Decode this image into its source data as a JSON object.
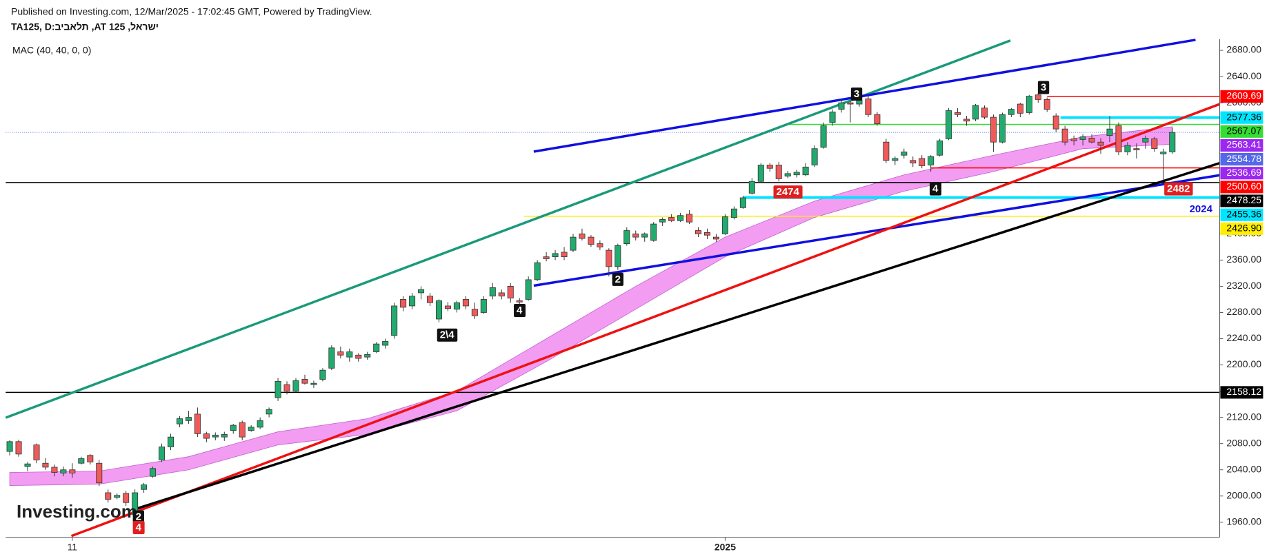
{
  "header": {
    "published": "Published on Investing.com, 12/Mar/2025 - 17:02:45 GMT, Powered by TradingView.",
    "symbol": "TA125, D:ביבאלת ,AT 125 ,לארשי"
  },
  "chart_data": {
    "type": "candlestick",
    "categories": [
      null,
      null,
      null,
      null,
      null,
      null,
      null,
      "11",
      null,
      null,
      null,
      null,
      null,
      null,
      null,
      null,
      null,
      null,
      null,
      null,
      null,
      null,
      null,
      null,
      null,
      null,
      null,
      null,
      null,
      null,
      null,
      null,
      null,
      null,
      null,
      null,
      null,
      null,
      null,
      null,
      null,
      null,
      null,
      null,
      null,
      null,
      null,
      null,
      null,
      null,
      null,
      null,
      null,
      null,
      null,
      null,
      null,
      null,
      null,
      null,
      null,
      null,
      null,
      null,
      null,
      null,
      null,
      null,
      null,
      null,
      null,
      null,
      null,
      null,
      null,
      null,
      null,
      null,
      null,
      null,
      "2025",
      null,
      null,
      null,
      null,
      null,
      null,
      null,
      null,
      null,
      null,
      null,
      null,
      null,
      null,
      null,
      null,
      null,
      null,
      null,
      null,
      null,
      null,
      null,
      null,
      null,
      null,
      null,
      null,
      null,
      null,
      null,
      null,
      null,
      null,
      null,
      null,
      null,
      null,
      null,
      null,
      null,
      null,
      null,
      null,
      null,
      null,
      null,
      null,
      null,
      null
    ],
    "open": [
      2068,
      2083,
      2045,
      2078,
      2050,
      2044,
      2035,
      2040,
      2050,
      2062,
      2050,
      2005,
      1998,
      2004,
      1972,
      2010,
      2030,
      2055,
      2075,
      2110,
      2115,
      2125,
      2095,
      2090,
      2090,
      2100,
      2112,
      2100,
      2105,
      2125,
      2150,
      2170,
      2160,
      2178,
      2170,
      2178,
      2195,
      2220,
      2212,
      2215,
      2212,
      2220,
      2230,
      2245,
      2300,
      2290,
      2310,
      2305,
      2270,
      2290,
      2285,
      2300,
      2285,
      2280,
      2305,
      2310,
      2320,
      2298,
      2300,
      2330,
      2365,
      2365,
      2372,
      2375,
      2400,
      2395,
      2385,
      2375,
      2350,
      2385,
      2400,
      2395,
      2390,
      2418,
      2425,
      2420,
      2430,
      2405,
      2402,
      2395,
      2400,
      2425,
      2440,
      2462,
      2480,
      2505,
      2505,
      2488,
      2490,
      2490,
      2505,
      2532,
      2570,
      2590,
      2600,
      2598,
      2606,
      2582,
      2540,
      2512,
      2520,
      2512,
      2515,
      2505,
      2520,
      2545,
      2585,
      2575,
      2575,
      2592,
      2578,
      2540,
      2582,
      2598,
      2585,
      2612,
      2605,
      2580,
      2560,
      2545,
      2544,
      2546,
      2540,
      2550,
      2565,
      2525,
      2530,
      2540,
      2545,
      2522,
      2525
    ],
    "high": [
      2085,
      2086,
      2052,
      2080,
      2058,
      2048,
      2045,
      2050,
      2060,
      2064,
      2055,
      2010,
      2004,
      2008,
      2010,
      2020,
      2045,
      2080,
      2095,
      2122,
      2130,
      2135,
      2098,
      2097,
      2098,
      2110,
      2115,
      2108,
      2120,
      2135,
      2180,
      2175,
      2180,
      2185,
      2176,
      2195,
      2230,
      2228,
      2225,
      2218,
      2220,
      2235,
      2240,
      2295,
      2305,
      2310,
      2320,
      2310,
      2300,
      2296,
      2298,
      2305,
      2295,
      2305,
      2325,
      2315,
      2325,
      2302,
      2335,
      2360,
      2372,
      2375,
      2380,
      2400,
      2408,
      2398,
      2390,
      2378,
      2385,
      2410,
      2405,
      2402,
      2418,
      2425,
      2430,
      2432,
      2436,
      2410,
      2408,
      2400,
      2430,
      2442,
      2458,
      2485,
      2508,
      2508,
      2510,
      2496,
      2498,
      2508,
      2535,
      2570,
      2590,
      2605,
      2603,
      2612,
      2610,
      2586,
      2545,
      2518,
      2530,
      2518,
      2520,
      2520,
      2545,
      2592,
      2592,
      2580,
      2598,
      2596,
      2582,
      2585,
      2592,
      2600,
      2612,
      2615,
      2608,
      2584,
      2565,
      2550,
      2552,
      2552,
      2546,
      2580,
      2570,
      2540,
      2538,
      2550,
      2548,
      2530,
      2562
    ],
    "low": [
      2062,
      2060,
      2038,
      2050,
      2040,
      2030,
      2030,
      2028,
      2048,
      2048,
      2015,
      1990,
      1995,
      1985,
      1960,
      2005,
      2028,
      2052,
      2070,
      2105,
      2110,
      2090,
      2082,
      2085,
      2084,
      2095,
      2085,
      2098,
      2102,
      2120,
      2145,
      2155,
      2158,
      2170,
      2165,
      2175,
      2192,
      2210,
      2205,
      2205,
      2208,
      2218,
      2225,
      2240,
      2282,
      2285,
      2300,
      2290,
      2265,
      2282,
      2280,
      2285,
      2270,
      2278,
      2300,
      2300,
      2295,
      2290,
      2298,
      2328,
      2358,
      2360,
      2360,
      2372,
      2390,
      2380,
      2375,
      2335,
      2345,
      2382,
      2390,
      2388,
      2388,
      2412,
      2418,
      2418,
      2415,
      2395,
      2392,
      2388,
      2398,
      2422,
      2438,
      2460,
      2478,
      2495,
      2480,
      2485,
      2486,
      2488,
      2502,
      2530,
      2565,
      2585,
      2570,
      2594,
      2578,
      2565,
      2508,
      2505,
      2515,
      2502,
      2500,
      2495,
      2518,
      2543,
      2578,
      2565,
      2572,
      2575,
      2525,
      2538,
      2578,
      2578,
      2582,
      2600,
      2586,
      2555,
      2535,
      2535,
      2535,
      2538,
      2522,
      2540,
      2520,
      2520,
      2515,
      2530,
      2525,
      2482,
      2522
    ],
    "close": [
      2083,
      2064,
      2049,
      2055,
      2044,
      2036,
      2040,
      2035,
      2057,
      2052,
      2020,
      1995,
      2001,
      1990,
      2005,
      2017,
      2042,
      2075,
      2090,
      2118,
      2120,
      2095,
      2088,
      2093,
      2094,
      2108,
      2090,
      2105,
      2115,
      2132,
      2175,
      2160,
      2176,
      2172,
      2172,
      2192,
      2226,
      2215,
      2220,
      2210,
      2216,
      2232,
      2236,
      2290,
      2288,
      2305,
      2315,
      2295,
      2298,
      2286,
      2295,
      2290,
      2275,
      2300,
      2318,
      2305,
      2302,
      2296,
      2330,
      2356,
      2362,
      2370,
      2365,
      2395,
      2393,
      2384,
      2380,
      2350,
      2382,
      2405,
      2395,
      2400,
      2415,
      2422,
      2420,
      2428,
      2418,
      2400,
      2398,
      2392,
      2426,
      2438,
      2455,
      2480,
      2505,
      2500,
      2484,
      2492,
      2494,
      2502,
      2530,
      2565,
      2586,
      2600,
      2598,
      2604,
      2582,
      2568,
      2512,
      2515,
      2525,
      2508,
      2504,
      2518,
      2542,
      2588,
      2582,
      2572,
      2596,
      2578,
      2540,
      2582,
      2590,
      2584,
      2610,
      2605,
      2590,
      2560,
      2540,
      2542,
      2548,
      2540,
      2535,
      2560,
      2525,
      2535,
      2528,
      2546,
      2530,
      2525,
      2554.78
    ],
    "up_color": "#22ab6e",
    "down_color": "#ef5a5a",
    "last_label_color": "#5468e8",
    "ylim": [
      1937,
      2697
    ],
    "yticks": [
      {
        "value": 1960,
        "label": "1960.00"
      },
      {
        "value": 2000,
        "label": "2000.00"
      },
      {
        "value": 2040,
        "label": "2040.00"
      },
      {
        "value": 2080,
        "label": "2080.00"
      },
      {
        "value": 2120,
        "label": "2120.00"
      },
      {
        "value": 2160,
        "label": "2160.00"
      },
      {
        "value": 2200,
        "label": "2200.00"
      },
      {
        "value": 2240,
        "label": "2240.00"
      },
      {
        "value": 2280,
        "label": "2280.00"
      },
      {
        "value": 2320,
        "label": "2320.00"
      },
      {
        "value": 2360,
        "label": "2360.00"
      },
      {
        "value": 2400,
        "label": "2400.00"
      },
      {
        "value": 2600,
        "label": "2600.00"
      },
      {
        "value": 2640,
        "label": "2640.00"
      },
      {
        "value": 2680,
        "label": "2680.00"
      }
    ],
    "mac": {
      "name": "MAC (40, 40, 0, 0)",
      "color": "#f08cf0",
      "label_color": "#9c27f0",
      "x": [
        0,
        10,
        20,
        30,
        40,
        50,
        60,
        70,
        80,
        90,
        100,
        110,
        120,
        130
      ],
      "upper": [
        2036,
        2038,
        2060,
        2098,
        2118,
        2160,
        2240,
        2320,
        2395,
        2450,
        2490,
        2520,
        2548,
        2563.41
      ],
      "lower": [
        2016,
        2018,
        2040,
        2078,
        2094,
        2130,
        2205,
        2285,
        2365,
        2425,
        2465,
        2495,
        2530,
        2536.69
      ]
    },
    "levels": [
      {
        "value": 2609.69,
        "label": "2609.69",
        "color": "#ff0000",
        "text_color": "#ffffff",
        "from": 116,
        "style": "thin"
      },
      {
        "value": 2577.36,
        "label": "2577.36",
        "color": "#00e5ff",
        "text_color": "#000000",
        "from": 117.5,
        "style": "thick"
      },
      {
        "value": 2567.07,
        "label": "2567.07",
        "color": "#33dd33",
        "text_color": "#000000",
        "from": 87,
        "style": "thin"
      },
      {
        "value": 2500.6,
        "label": "2500.60",
        "color": "#ff0000",
        "text_color": "#ffffff",
        "from": 103,
        "style": "thin"
      },
      {
        "value": 2478.25,
        "label": "2478.25",
        "color": "#000000",
        "text_color": "#ffffff",
        "from": -0.5,
        "style": "thin"
      },
      {
        "value": 2455.36,
        "label": "2455.36",
        "color": "#00e5ff",
        "text_color": "#000000",
        "from": 82,
        "style": "thick"
      },
      {
        "value": 2426.9,
        "label": "2426.90",
        "color": "#ffee00",
        "text_color": "#000000",
        "from": 57.5,
        "style": "thin"
      },
      {
        "value": 2158.12,
        "label": "2158.12",
        "color": "#000000",
        "text_color": "#ffffff",
        "from": -0.5,
        "style": "thin"
      }
    ],
    "trendlines": [
      {
        "color": "#1a9a7a",
        "points": [
          [
            -0.45,
            2119.5
          ],
          [
            111.9,
            2695
          ]
        ]
      },
      {
        "color": "#1010e0",
        "points": [
          [
            58.6,
            2525.5
          ],
          [
            132.6,
            2696
          ]
        ]
      },
      {
        "color": "#1010e0",
        "points": [
          [
            58.6,
            2321
          ],
          [
            135.3,
            2489.5
          ]
        ]
      },
      {
        "color": "#ee1111",
        "points": [
          [
            6.9,
            1939
          ],
          [
            135.3,
            2598
          ]
        ]
      },
      {
        "color": "#000000",
        "points": [
          [
            13.8,
            1979
          ],
          [
            135.3,
            2508
          ]
        ]
      }
    ],
    "annotations": [
      {
        "text": "3",
        "x": 94.7,
        "y": 2612.7,
        "bg": "#111111",
        "fg": "#ffffff"
      },
      {
        "text": "3",
        "x": 115.6,
        "y": 2622.7,
        "bg": "#111111",
        "fg": "#ffffff"
      },
      {
        "text": "2474",
        "x": 87,
        "y": 2463.3,
        "bg": "#e02020",
        "fg": "#ffffff"
      },
      {
        "text": "2482",
        "x": 130.7,
        "y": 2468,
        "bg": "#e02020",
        "fg": "#ffffff"
      },
      {
        "text": "4",
        "x": 103.5,
        "y": 2468,
        "bg": "#111111",
        "fg": "#ffffff"
      },
      {
        "text": "2",
        "x": 68,
        "y": 2330,
        "bg": "#111111",
        "fg": "#ffffff"
      },
      {
        "text": "4",
        "x": 57,
        "y": 2282.6,
        "bg": "#111111",
        "fg": "#ffffff"
      },
      {
        "text": "2\\4",
        "x": 48.9,
        "y": 2245,
        "bg": "#111111",
        "fg": "#ffffff"
      },
      {
        "text": "2",
        "x": 14.4,
        "y": 1967.5,
        "bg": "#111111",
        "fg": "#ffffff"
      },
      {
        "text": "4",
        "x": 14.4,
        "y": 1951.3,
        "bg": "#e02020",
        "fg": "#ffffff"
      },
      {
        "text": "2024",
        "x": 133.2,
        "y": 2437,
        "fg": "#1010e0"
      }
    ],
    "logo": "Investing.com"
  }
}
